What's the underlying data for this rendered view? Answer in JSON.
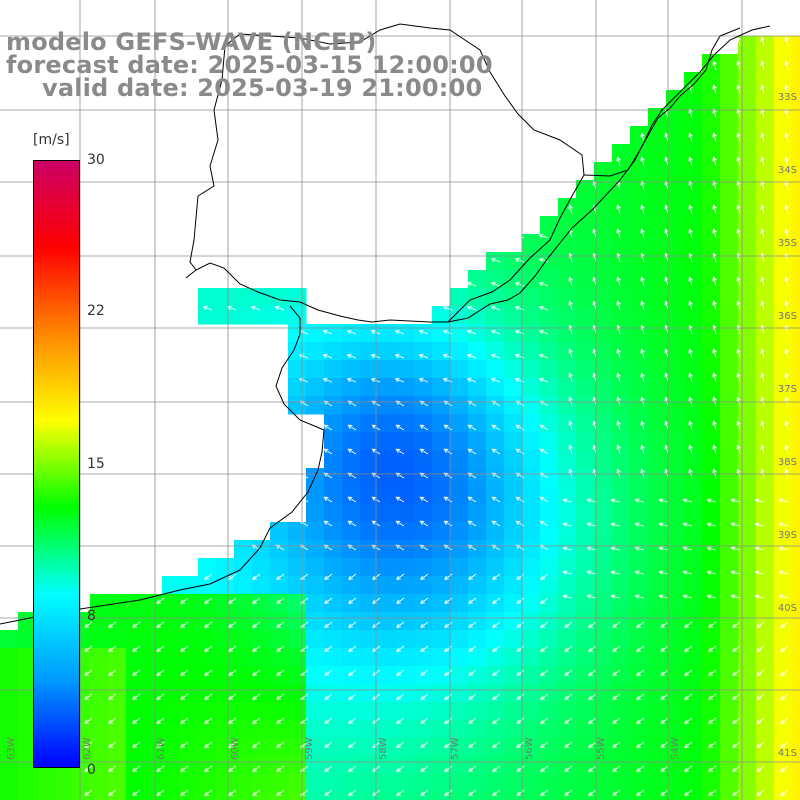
{
  "title": {
    "line1": "modelo GEFS-WAVE (NCEP)",
    "line2": "forecast date: 2025-03-15 12:00:00",
    "line3": "valid date: 2025-03-19 21:00:00"
  },
  "legend": {
    "unit": "[m/s]",
    "ticks": [
      "30",
      "22",
      "15",
      "8",
      "0"
    ],
    "tick_values": [
      30,
      22,
      15,
      8,
      0
    ],
    "range": [
      0,
      30
    ],
    "colors": [
      "#0000ff",
      "#0099ff",
      "#00ffff",
      "#00ff00",
      "#ffff00",
      "#ff8800",
      "#ff0000",
      "#cc0066"
    ]
  },
  "map": {
    "variable": "wind speed (m/s) with direction arrows",
    "latitude_labels": [
      "33S",
      "34S",
      "35S",
      "36S",
      "37S",
      "38S",
      "39S",
      "40S",
      "41S"
    ],
    "longitude_labels": [
      "63W",
      "62W",
      "61W",
      "60W",
      "59W",
      "58W",
      "57W",
      "56W",
      "55W",
      "54W"
    ],
    "colors": {
      "land": "#ffffff",
      "grid": "#8c8c8c",
      "coast": "#000000",
      "arrow": "#ffffff"
    }
  }
}
